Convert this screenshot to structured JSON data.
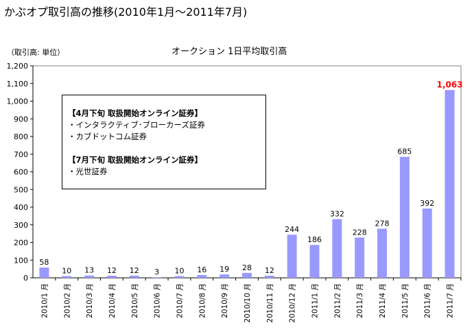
{
  "title": "かぶオプ取引高の推移(2010年1月～2011年7月)",
  "unit_label": "（取引高: 単位）",
  "note": {
    "heading1": "【4月下旬  取扱開始オンライン証券】",
    "items1": [
      "・インタラクティブ･ブローカーズ証券",
      "・カブドットコム証券"
    ],
    "heading2": "【7月下旬  取扱開始オンライン証券】",
    "items2": [
      "・光世証券"
    ]
  },
  "colors": {
    "bar": "#9999ff",
    "highlight_label": "#ff0000"
  },
  "chart_data": {
    "type": "bar",
    "title": "オークション  1日平均取引高",
    "categories": [
      "2010/1 月",
      "2010/2 月",
      "2010/3 月",
      "2010/4 月",
      "2010/5 月",
      "2010/6 月",
      "2010/7 月",
      "2010/8 月",
      "2010/9 月",
      "2010/10 月",
      "2010/11 月",
      "2010/12 月",
      "2011/1 月",
      "2011/2 月",
      "2011/3 月",
      "2011/4 月",
      "2011/5 月",
      "2011/6 月",
      "2011/7 月"
    ],
    "values": [
      58,
      10,
      13,
      12,
      12,
      3,
      10,
      16,
      19,
      28,
      12,
      244,
      186,
      332,
      228,
      278,
      685,
      392,
      1063
    ],
    "labels": [
      "58",
      "10",
      "13",
      "12",
      "12",
      "3",
      "10",
      "16",
      "19",
      "28",
      "12",
      "244",
      "186",
      "332",
      "228",
      "278",
      "685",
      "392",
      "1,063"
    ],
    "ylim": [
      0,
      1200
    ],
    "yticks": [
      "0",
      "100",
      "200",
      "300",
      "400",
      "500",
      "600",
      "700",
      "800",
      "900",
      "1,000",
      "1,100",
      "1,200"
    ],
    "xlabel": "",
    "ylabel": "",
    "highlight_index": 18
  }
}
